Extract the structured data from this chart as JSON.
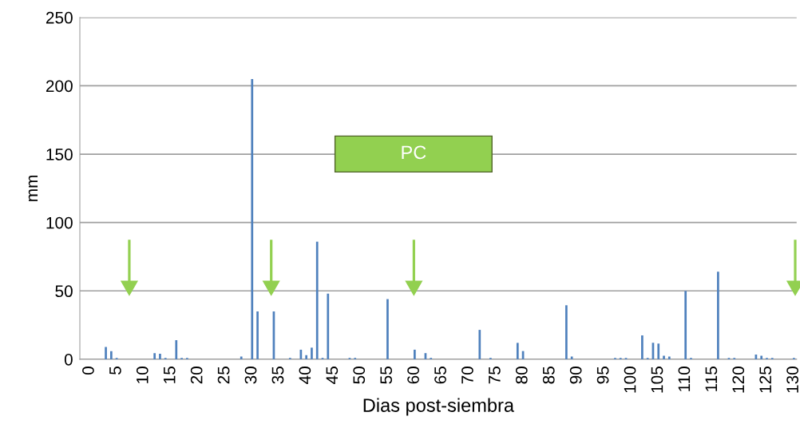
{
  "chart_data": {
    "type": "bar",
    "xlabel": "Dias post-siembra",
    "ylabel": "mm",
    "x": [
      3,
      4,
      5,
      12,
      13,
      14,
      16,
      17,
      18,
      28,
      30,
      31,
      34,
      37,
      39,
      40,
      41,
      42,
      43,
      44,
      48,
      49,
      55,
      60,
      62,
      63,
      72,
      74,
      79,
      80,
      88,
      89,
      97,
      98,
      99,
      102,
      103,
      104,
      105,
      106,
      107,
      110,
      111,
      116,
      118,
      119,
      123,
      124,
      125,
      126,
      130
    ],
    "values": [
      9,
      6,
      1,
      4.5,
      4,
      1,
      14,
      1,
      1,
      2,
      205,
      35,
      35,
      1,
      7,
      3,
      8.5,
      86,
      1,
      48,
      1,
      1,
      44,
      7,
      4.5,
      1,
      21.5,
      1,
      12,
      6,
      39.5,
      2,
      1,
      1,
      1,
      17.5,
      1,
      12,
      11.5,
      2.5,
      2,
      50,
      1,
      64,
      1,
      1,
      3.5,
      2.5,
      1,
      1,
      1
    ],
    "color": "#4f81bd",
    "xlim": [
      -1.8,
      130.5
    ],
    "xticks": [
      0,
      5,
      10,
      15,
      20,
      25,
      30,
      35,
      40,
      45,
      50,
      55,
      60,
      65,
      70,
      75,
      80,
      85,
      90,
      95,
      100,
      105,
      110,
      115,
      120,
      125,
      130
    ],
    "ylim": [
      0,
      250
    ],
    "yticks": [
      0,
      50,
      100,
      150,
      200,
      250
    ],
    "grid": "y",
    "annotations": [
      "PC"
    ]
  }
}
